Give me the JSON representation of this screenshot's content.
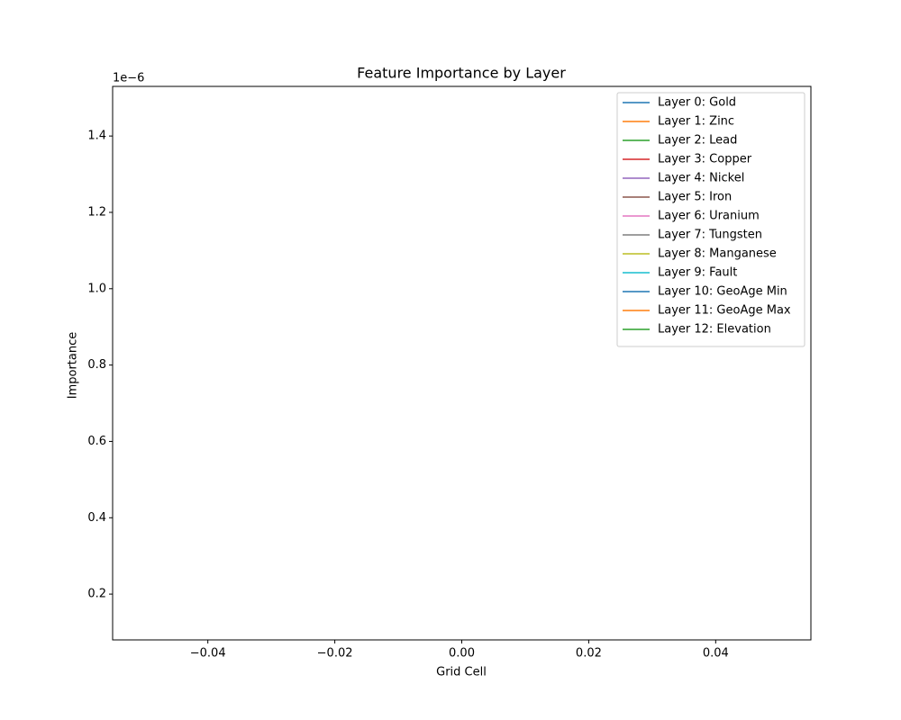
{
  "chart_data": {
    "type": "line",
    "title": "Feature Importance by Layer",
    "xlabel": "Grid Cell",
    "ylabel": "Importance",
    "y_offset_text": "1e−6",
    "x": [
      0
    ],
    "series": [
      {
        "name": "Layer 0: Gold",
        "color": "#1f77b4",
        "values": [
          null
        ]
      },
      {
        "name": "Layer 1: Zinc",
        "color": "#ff7f0e",
        "values": [
          null
        ]
      },
      {
        "name": "Layer 2: Lead",
        "color": "#2ca02c",
        "values": [
          null
        ]
      },
      {
        "name": "Layer 3: Copper",
        "color": "#d62728",
        "values": [
          null
        ]
      },
      {
        "name": "Layer 4: Nickel",
        "color": "#9467bd",
        "values": [
          null
        ]
      },
      {
        "name": "Layer 5: Iron",
        "color": "#8c564b",
        "values": [
          null
        ]
      },
      {
        "name": "Layer 6: Uranium",
        "color": "#e377c2",
        "values": [
          null
        ]
      },
      {
        "name": "Layer 7: Tungsten",
        "color": "#7f7f7f",
        "values": [
          null
        ]
      },
      {
        "name": "Layer 8: Manganese",
        "color": "#bcbd22",
        "values": [
          null
        ]
      },
      {
        "name": "Layer 9: Fault",
        "color": "#17becf",
        "values": [
          null
        ]
      },
      {
        "name": "Layer 10: GeoAge Min",
        "color": "#1f77b4",
        "values": [
          null
        ]
      },
      {
        "name": "Layer 11: GeoAge Max",
        "color": "#ff7f0e",
        "values": [
          null
        ]
      },
      {
        "name": "Layer 12: Elevation",
        "color": "#2ca02c",
        "values": [
          null
        ]
      }
    ],
    "xlim": [
      -0.055,
      0.055
    ],
    "xticks": [
      {
        "value": -0.04,
        "label": "−0.04"
      },
      {
        "value": -0.02,
        "label": "−0.02"
      },
      {
        "value": 0,
        "label": "0.00"
      },
      {
        "value": 0.02,
        "label": "0.02"
      },
      {
        "value": 0.04,
        "label": "0.04"
      }
    ],
    "ylim": [
      8e-08,
      1.53e-06
    ],
    "yticks": [
      {
        "value": 2e-07,
        "label": "0.2"
      },
      {
        "value": 4e-07,
        "label": "0.4"
      },
      {
        "value": 6e-07,
        "label": "0.6"
      },
      {
        "value": 8e-07,
        "label": "0.8"
      },
      {
        "value": 1e-06,
        "label": "1.0"
      },
      {
        "value": 1.2e-06,
        "label": "1.2"
      },
      {
        "value": 1.4e-06,
        "label": "1.4"
      }
    ],
    "grid": false,
    "legend": "upper right"
  }
}
